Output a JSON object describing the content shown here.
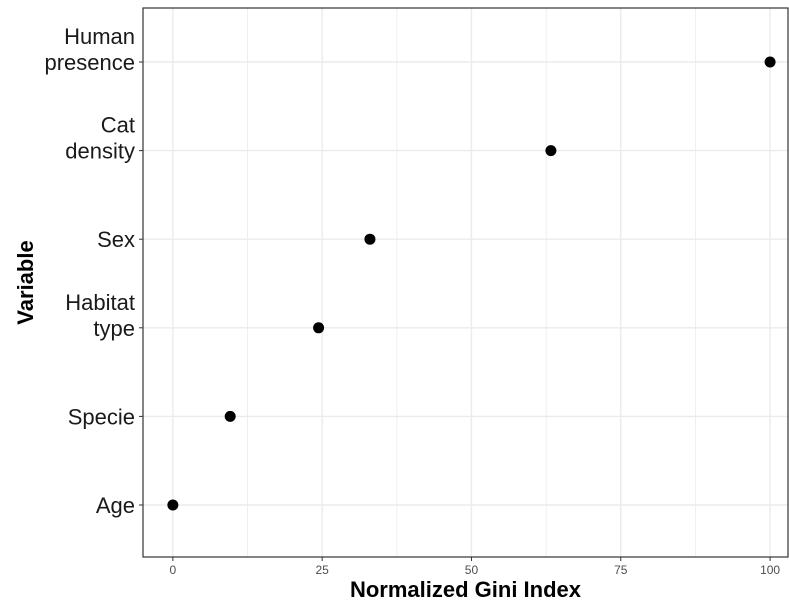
{
  "chart_data": {
    "type": "scatter",
    "title": "",
    "xlabel": "Normalized Gini Index",
    "ylabel": "Variable",
    "xlim": [
      -5,
      103
    ],
    "xticks": [
      0,
      25,
      50,
      75,
      100
    ],
    "grid": true,
    "legend": "none",
    "categories": [
      [
        "Age"
      ],
      [
        "Specie"
      ],
      [
        "Habitat",
        "type"
      ],
      [
        "Sex"
      ],
      [
        "Cat",
        "density"
      ],
      [
        "Human",
        "presence"
      ]
    ],
    "values": [
      0,
      9.6,
      24.4,
      33.0,
      63.3,
      100
    ],
    "point_color": "#000000",
    "grid_color": "#ebebeb",
    "panel_border_color": "#333333"
  }
}
